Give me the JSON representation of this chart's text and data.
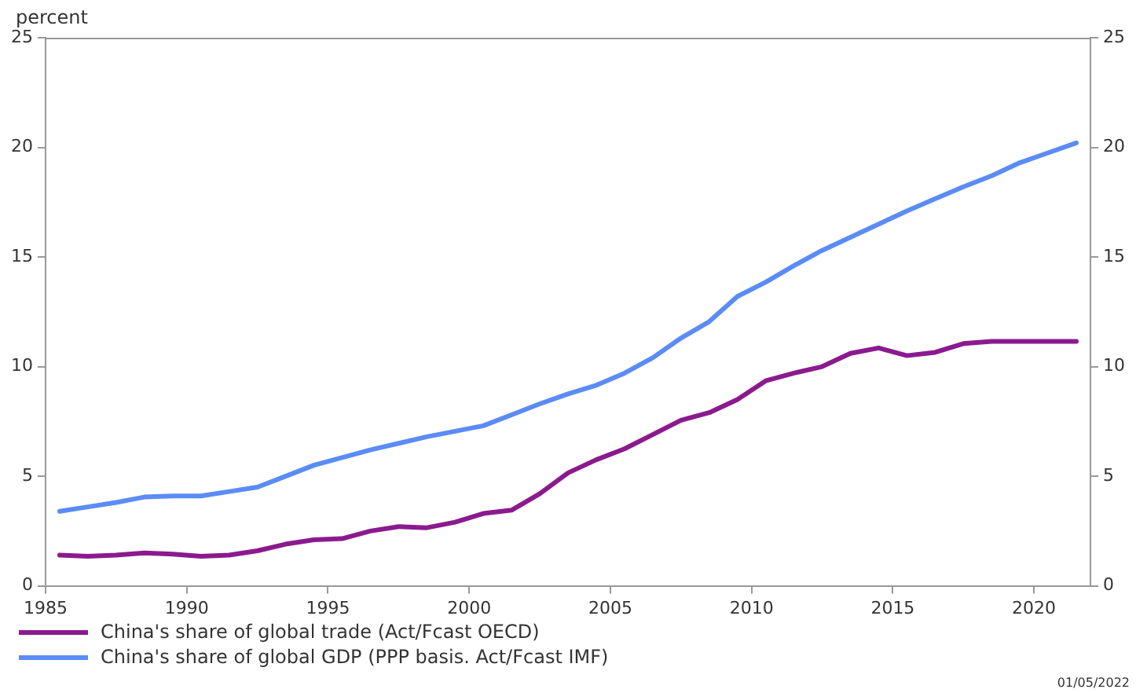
{
  "chart_data": {
    "type": "line",
    "ylabel": "percent",
    "annotations": [
      "01/05/2022"
    ],
    "x": [
      1985.5,
      1986.5,
      1987.5,
      1988.5,
      1989.5,
      1990.5,
      1991.5,
      1992.5,
      1993.5,
      1994.5,
      1995.5,
      1996.5,
      1997.5,
      1998.5,
      1999.5,
      2000.5,
      2001.5,
      2002.5,
      2003.5,
      2004.5,
      2005.5,
      2006.5,
      2007.5,
      2008.5,
      2009.5,
      2010.5,
      2011.5,
      2012.5,
      2013.5,
      2014.5,
      2015.5,
      2016.5,
      2017.5,
      2018.5,
      2019.5,
      2020.5,
      2021.5
    ],
    "series": [
      {
        "name": "China's share of global trade (Act/Fcast OECD)",
        "color": "#8b1a8e",
        "values": [
          1.4,
          1.35,
          1.4,
          1.5,
          1.45,
          1.35,
          1.4,
          1.6,
          1.9,
          2.1,
          2.15,
          2.5,
          2.7,
          2.65,
          2.9,
          3.3,
          3.45,
          4.2,
          5.15,
          5.75,
          6.25,
          6.9,
          7.55,
          7.9,
          8.5,
          9.35,
          9.7,
          10.0,
          10.6,
          10.85,
          10.5,
          10.65,
          11.05,
          11.15,
          11.15,
          11.15,
          11.15
        ]
      },
      {
        "name": "China's share of global GDP (PPP basis. Act/Fcast IMF)",
        "color": "#5b8cf5",
        "values": [
          3.4,
          3.6,
          3.8,
          4.05,
          4.1,
          4.1,
          4.3,
          4.5,
          5.0,
          5.5,
          5.85,
          6.2,
          6.5,
          6.8,
          7.05,
          7.3,
          7.8,
          8.3,
          8.75,
          9.15,
          9.7,
          10.4,
          11.3,
          12.05,
          13.2,
          13.85,
          14.6,
          15.3,
          15.9,
          16.5,
          17.1,
          17.65,
          18.2,
          18.7,
          19.3,
          19.75,
          20.2
        ]
      }
    ],
    "xlim": [
      1985,
      2022
    ],
    "xticks": [
      1985,
      1990,
      1995,
      2000,
      2005,
      2010,
      2015,
      2020
    ],
    "ylim": [
      0,
      25
    ],
    "yticks": [
      0,
      5,
      10,
      15,
      20,
      25
    ],
    "y2lim": [
      0,
      25
    ],
    "y2ticks": [
      0,
      5,
      10,
      15,
      20,
      25
    ],
    "grid": false,
    "legend": "bottom left",
    "marker": "none",
    "line_style": "solid"
  }
}
